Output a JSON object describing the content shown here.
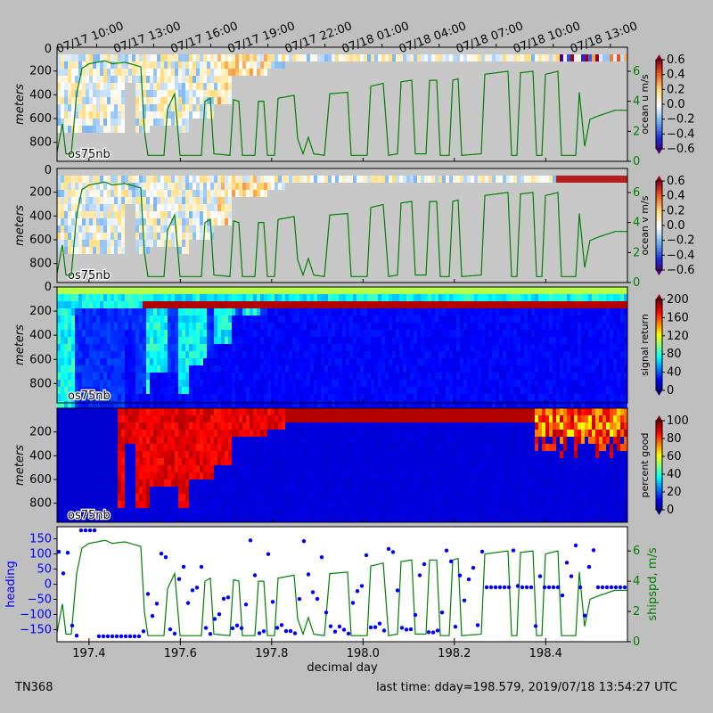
{
  "figure": {
    "cruise_label": "TN368",
    "last_time_label": "last time: dday=198.579,  2019/07/18 13:54:27 UTC",
    "time_tick_labels": [
      "07/17 10:00",
      "07/17 13:00",
      "07/17 16:00",
      "07/17 19:00",
      "07/17 22:00",
      "07/18 01:00",
      "07/18 04:00",
      "07/18 07:00",
      "07/18 10:00",
      "07/18 13:00"
    ],
    "time_tick_ddays": [
      197.4167,
      197.5417,
      197.6667,
      197.7917,
      197.9167,
      198.0417,
      198.1667,
      198.2917,
      198.4167,
      198.5417
    ],
    "xlabel": "decimal day",
    "xticks": [
      197.4,
      197.6,
      197.8,
      198.0,
      198.2,
      198.4
    ],
    "xtick_labels": [
      "197.4",
      "197.6",
      "197.8",
      "198.0",
      "198.2",
      "198.4"
    ],
    "xlim": [
      197.33,
      198.579
    ]
  },
  "chart_data": [
    {
      "type": "heatmap",
      "name": "ocean-u",
      "ylabel": "meters",
      "instrument_label": "os75nb",
      "yticks": [
        200,
        400,
        600,
        800
      ],
      "ytick_labels": [
        "200",
        "400",
        "600",
        "800"
      ],
      "ytop_label": "0",
      "ylim": [
        0,
        960
      ],
      "colorbar_label": "ocean u m/s",
      "colorbar_ticks": [
        0.6,
        0.4,
        0.2,
        0.0,
        -0.2,
        -0.4,
        -0.6
      ],
      "colorbar_tick_labels": [
        "0.6",
        "0.4",
        "0.2",
        "0.0",
        "−0.2",
        "−0.4",
        "−0.6"
      ],
      "colormap": "bluewhitered",
      "right_axis_ticks": [
        "0",
        "2",
        "4",
        "6"
      ],
      "right_axis_color": "#008000"
    },
    {
      "type": "heatmap",
      "name": "ocean-v",
      "ylabel": "meters",
      "instrument_label": "os75nb",
      "yticks": [
        200,
        400,
        600,
        800
      ],
      "ytick_labels": [
        "200",
        "400",
        "600",
        "800"
      ],
      "ytop_label": "0",
      "ylim": [
        0,
        960
      ],
      "colorbar_label": "ocean v m/s",
      "colorbar_ticks": [
        0.6,
        0.4,
        0.2,
        0.0,
        -0.2,
        -0.4,
        -0.6
      ],
      "colorbar_tick_labels": [
        "0.6",
        "0.4",
        "0.2",
        "0.0",
        "−0.2",
        "−0.4",
        "−0.6"
      ],
      "colormap": "bluewhitered",
      "right_axis_ticks": [
        "0",
        "2",
        "4",
        "6"
      ],
      "right_axis_color": "#008000"
    },
    {
      "type": "heatmap",
      "name": "signal-return",
      "ylabel": "meters",
      "instrument_label": "os75nb",
      "yticks": [
        0,
        200,
        400,
        600,
        800
      ],
      "ytick_labels": [
        "0",
        "200",
        "400",
        "600",
        "800"
      ],
      "ylim": [
        0,
        960
      ],
      "colorbar_label": "signal return",
      "colorbar_ticks": [
        200,
        160,
        120,
        80,
        40,
        0
      ],
      "colorbar_tick_labels": [
        "200",
        "160",
        "120",
        "80",
        "40",
        "0"
      ],
      "colormap": "jet"
    },
    {
      "type": "heatmap",
      "name": "percent-good",
      "ylabel": "meters",
      "instrument_label": "os75nb",
      "yticks": [
        200,
        400,
        600,
        800
      ],
      "ytick_labels": [
        "200",
        "400",
        "600",
        "800"
      ],
      "ylim": [
        0,
        960
      ],
      "colorbar_label": "percent good",
      "colorbar_ticks": [
        100,
        80,
        60,
        40,
        20,
        0
      ],
      "colorbar_tick_labels": [
        "100",
        "80",
        "60",
        "40",
        "20",
        "0"
      ],
      "colormap": "jet"
    },
    {
      "type": "scatter",
      "name": "heading-shipspd",
      "ylabel": "heading",
      "ylabel_color": "#0000ff",
      "yticks": [
        150,
        100,
        50,
        0,
        -50,
        -100,
        -150
      ],
      "ytick_labels": [
        "150",
        "100",
        "50",
        "0",
        "−50",
        "−100",
        "−150"
      ],
      "ylim": [
        -190,
        190
      ],
      "right_ylabel": "shipspd, m/s",
      "right_ylabel_color": "#008000",
      "right_ticks": [
        "0",
        "2",
        "4",
        "6"
      ],
      "right_ylim": [
        0,
        7.6
      ]
    }
  ]
}
